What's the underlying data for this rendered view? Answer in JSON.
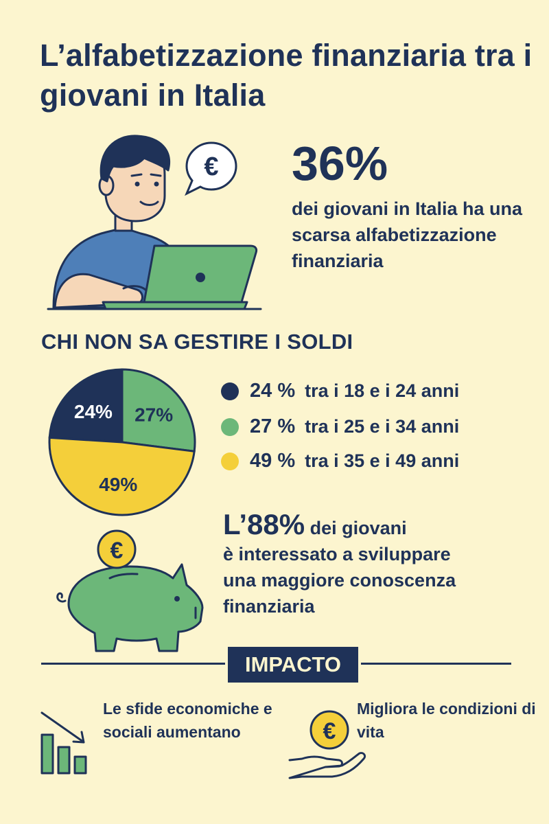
{
  "title": "L’alfabetizzazione finanziaria tra i giovani in Italia",
  "hero": {
    "stat": "36%",
    "description": "dei giovani in Italia ha una scarsa alfabetizzazione finanziaria",
    "bubble_symbol": "€"
  },
  "section_title": "CHI NON SA GESTIRE I SOLDI",
  "chart_data": {
    "type": "pie",
    "title": "CHI NON SA GESTIRE I SOLDI",
    "slices": [
      {
        "label": "tra i 18 e i 24 anni",
        "value": 24,
        "display": "24%",
        "legend_value": "24 %",
        "color": "#1F3258",
        "text_color": "#FFFFFF"
      },
      {
        "label": "tra i 25 e i 34 anni",
        "value": 27,
        "display": "27%",
        "legend_value": "27 %",
        "color": "#6CB779",
        "text_color": "#1F3258"
      },
      {
        "label": "tra i 35 e i 49 anni",
        "value": 49,
        "display": "49%",
        "legend_value": "49 %",
        "color": "#F4CF3A",
        "text_color": "#1F3258"
      }
    ],
    "legend_placement": "right"
  },
  "interest": {
    "pct": "L’88%",
    "line1_rest": " dei giovani",
    "line2": "è interessato a sviluppare",
    "line3": "una maggiore conoscenza",
    "line4": "finanziaria",
    "coin_symbol": "€"
  },
  "impact": {
    "heading": "IMPACTO",
    "item1": "Le sfide economiche e sociali aumentano",
    "item2": "Migliora le condizioni di vita",
    "coin_symbol": "€"
  },
  "colors": {
    "background": "#FCF5CF",
    "navy": "#1F3258",
    "green": "#6CB779",
    "yellow": "#F4CF3A",
    "shirt": "#4E7FB8",
    "skin": "#F6D7B8"
  }
}
